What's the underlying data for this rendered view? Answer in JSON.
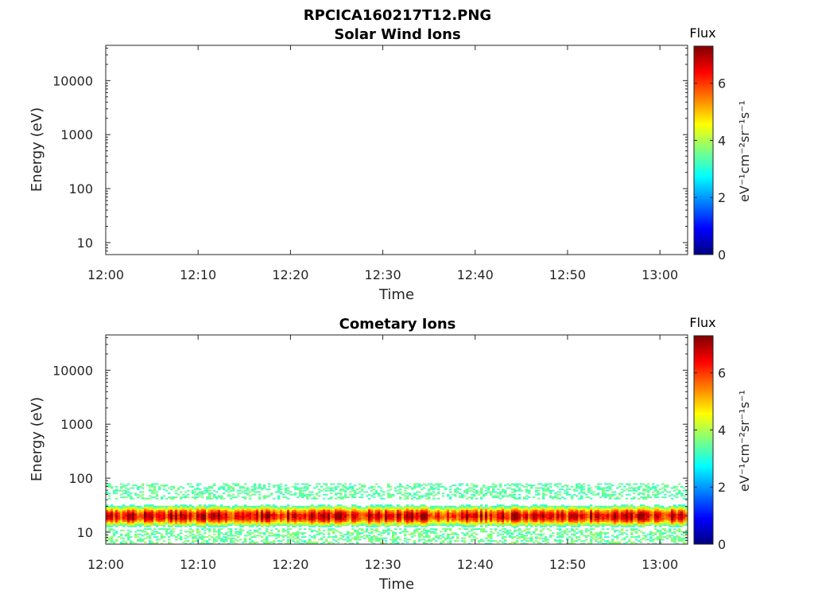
{
  "figure": {
    "title": "RPCICA160217T12.PNG"
  },
  "chart_data": [
    {
      "type": "heatmap",
      "title": "Solar Wind Ions",
      "xlabel": "Time",
      "ylabel": "Energy (eV)",
      "x_ticks": [
        "12:00",
        "12:10",
        "12:20",
        "12:30",
        "12:40",
        "12:50",
        "13:00"
      ],
      "y_ticks": [
        "10",
        "100",
        "1000",
        "10000"
      ],
      "y_scale": "log",
      "ylim": [
        6,
        45000
      ],
      "xlim": [
        "12:00",
        "13:03"
      ],
      "colorbar": {
        "title": "Flux",
        "unit_label": "eV⁻¹cm⁻²sr⁻¹s⁻¹",
        "ticks": [
          "0",
          "2",
          "4",
          "6"
        ],
        "range": [
          0,
          7.3
        ],
        "colormap": "jet"
      },
      "data_summary": "empty (no flux recorded)"
    },
    {
      "type": "heatmap",
      "title": "Cometary Ions",
      "xlabel": "Time",
      "ylabel": "Energy (eV)",
      "x_ticks": [
        "12:00",
        "12:10",
        "12:20",
        "12:30",
        "12:40",
        "12:50",
        "13:00"
      ],
      "y_ticks": [
        "10",
        "100",
        "1000",
        "10000"
      ],
      "y_scale": "log",
      "ylim": [
        6,
        45000
      ],
      "xlim": [
        "12:00",
        "13:03"
      ],
      "colorbar": {
        "title": "Flux",
        "unit_label": "eV⁻¹cm⁻²sr⁻¹s⁻¹",
        "ticks": [
          "0",
          "2",
          "4",
          "6"
        ],
        "range": [
          0,
          7.3
        ],
        "colormap": "jet"
      },
      "band": {
        "energy_peak_eV": 20,
        "energy_core_range_eV": [
          14,
          30
        ],
        "energy_outer_range_eV": [
          8,
          80
        ],
        "peak_flux": 6.5
      }
    }
  ]
}
